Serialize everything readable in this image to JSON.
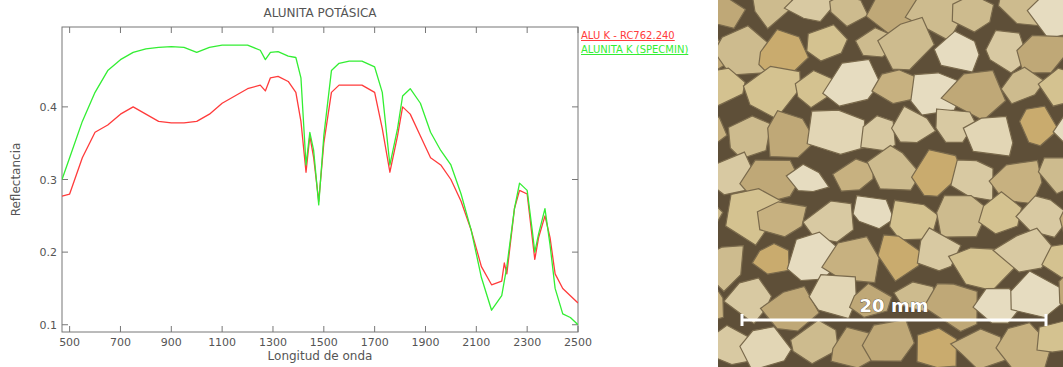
{
  "chart_data": {
    "type": "line",
    "title": "ALUNITA POTÁSICA",
    "x_label": "Longitud de onda",
    "y_label": "Reflectancia",
    "x": [
      470,
      500,
      550,
      600,
      650,
      700,
      750,
      800,
      850,
      900,
      950,
      1000,
      1050,
      1100,
      1150,
      1200,
      1250,
      1270,
      1290,
      1320,
      1360,
      1390,
      1410,
      1430,
      1445,
      1460,
      1480,
      1500,
      1530,
      1560,
      1600,
      1650,
      1700,
      1730,
      1760,
      1790,
      1810,
      1840,
      1880,
      1920,
      1960,
      2000,
      2040,
      2080,
      2120,
      2160,
      2200,
      2210,
      2220,
      2250,
      2270,
      2300,
      2320,
      2330,
      2345,
      2370,
      2390,
      2410,
      2440,
      2470,
      2500
    ],
    "series": [
      {
        "name": "ALU K - RC762.240",
        "color": "#ff3b3b",
        "values": [
          0.277,
          0.28,
          0.33,
          0.365,
          0.375,
          0.39,
          0.4,
          0.39,
          0.38,
          0.378,
          0.378,
          0.38,
          0.39,
          0.405,
          0.415,
          0.425,
          0.43,
          0.422,
          0.44,
          0.442,
          0.435,
          0.42,
          0.38,
          0.31,
          0.36,
          0.33,
          0.27,
          0.35,
          0.42,
          0.43,
          0.43,
          0.43,
          0.42,
          0.37,
          0.31,
          0.36,
          0.4,
          0.39,
          0.36,
          0.33,
          0.32,
          0.3,
          0.27,
          0.23,
          0.18,
          0.155,
          0.16,
          0.185,
          0.17,
          0.26,
          0.285,
          0.28,
          0.22,
          0.19,
          0.22,
          0.25,
          0.22,
          0.17,
          0.15,
          0.14,
          0.13
        ]
      },
      {
        "name": "ALUNITA K (SPECMIN)",
        "color": "#33ee33",
        "values": [
          0.3,
          0.33,
          0.38,
          0.42,
          0.45,
          0.465,
          0.475,
          0.48,
          0.482,
          0.483,
          0.482,
          0.475,
          0.482,
          0.485,
          0.485,
          0.485,
          0.478,
          0.465,
          0.475,
          0.476,
          0.47,
          0.468,
          0.44,
          0.32,
          0.365,
          0.34,
          0.265,
          0.36,
          0.45,
          0.46,
          0.463,
          0.463,
          0.455,
          0.42,
          0.32,
          0.37,
          0.415,
          0.425,
          0.405,
          0.365,
          0.34,
          0.32,
          0.28,
          0.23,
          0.165,
          0.12,
          0.14,
          0.16,
          0.18,
          0.26,
          0.295,
          0.285,
          0.23,
          0.2,
          0.225,
          0.26,
          0.21,
          0.15,
          0.115,
          0.11,
          0.1
        ]
      }
    ],
    "xlim": [
      470,
      2500
    ],
    "ylim": [
      0.09,
      0.51
    ],
    "xticks": [
      500,
      700,
      900,
      1100,
      1300,
      1500,
      1700,
      1900,
      2100,
      2300,
      2500
    ],
    "yticks": [
      0.1,
      0.2,
      0.3,
      0.4
    ],
    "grid": false,
    "legend": "right"
  },
  "photo": {
    "scale_label": "20 mm"
  }
}
